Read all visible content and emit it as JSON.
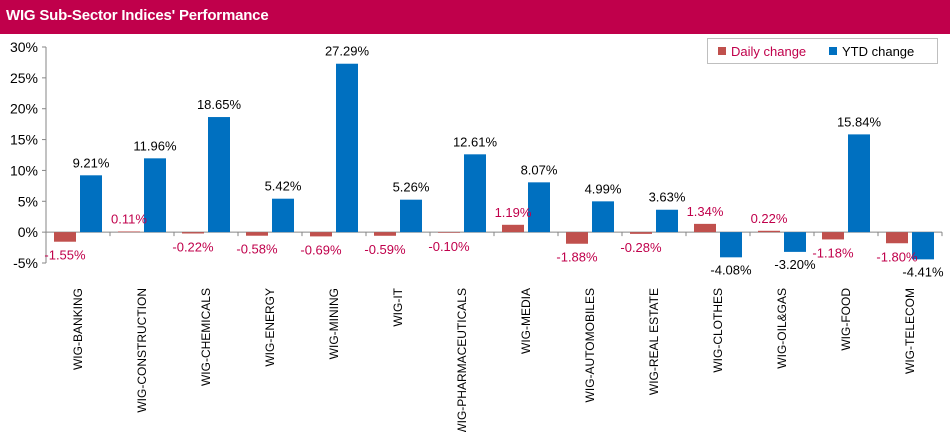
{
  "header": {
    "title": "WIG Sub-Sector Indices' Performance"
  },
  "colors": {
    "header_bg": "#c0004b",
    "daily": "#c0504d",
    "ytd": "#0070c0",
    "daily_label": "#c0004b",
    "ytd_label": "#000000"
  },
  "chart_data": {
    "type": "bar",
    "categories": [
      "WIG-BANKING",
      "WIG-CONSTRUCTION",
      "WIG-CHEMICALS",
      "WIG-ENERGY",
      "WIG-MINING",
      "WIG-IT",
      "WIG-PHARMACEUTICALS",
      "WIG-MEDIA",
      "WIG-AUTOMOBILES",
      "WIG-REAL ESTATE",
      "WIG-CLOTHES",
      "WIG-OIL&GAS",
      "WIG-FOOD",
      "WIG-TELECOM"
    ],
    "series": [
      {
        "name": "Daily change",
        "color": "#c0504d",
        "values": [
          -1.55,
          0.11,
          -0.22,
          -0.58,
          -0.69,
          -0.59,
          -0.1,
          1.19,
          -1.88,
          -0.28,
          1.34,
          0.22,
          -1.18,
          -1.8
        ],
        "labels": [
          "-1.55%",
          "0.11%",
          "-0.22%",
          "-0.58%",
          "-0.69%",
          "-0.59%",
          "-0.10%",
          "1.19%",
          "-1.88%",
          "-0.28%",
          "1.34%",
          "0.22%",
          "-1.18%",
          "-1.80%"
        ]
      },
      {
        "name": "YTD change",
        "color": "#0070c0",
        "values": [
          9.21,
          11.96,
          18.65,
          5.42,
          27.29,
          5.26,
          12.61,
          8.07,
          4.99,
          3.63,
          -4.08,
          -3.2,
          15.84,
          -4.41
        ],
        "labels": [
          "9.21%",
          "11.96%",
          "18.65%",
          "5.42%",
          "27.29%",
          "5.26%",
          "12.61%",
          "8.07%",
          "4.99%",
          "3.63%",
          "-4.08%",
          "-3.20%",
          "15.84%",
          "-4.41%"
        ]
      }
    ],
    "ylim": [
      -5,
      30
    ],
    "yticks": [
      -5,
      0,
      5,
      10,
      15,
      20,
      25,
      30
    ],
    "ytick_labels": [
      "-5%",
      "0%",
      "5%",
      "10%",
      "15%",
      "20%",
      "25%",
      "30%"
    ],
    "legend_position": "top-right",
    "grid": false
  }
}
